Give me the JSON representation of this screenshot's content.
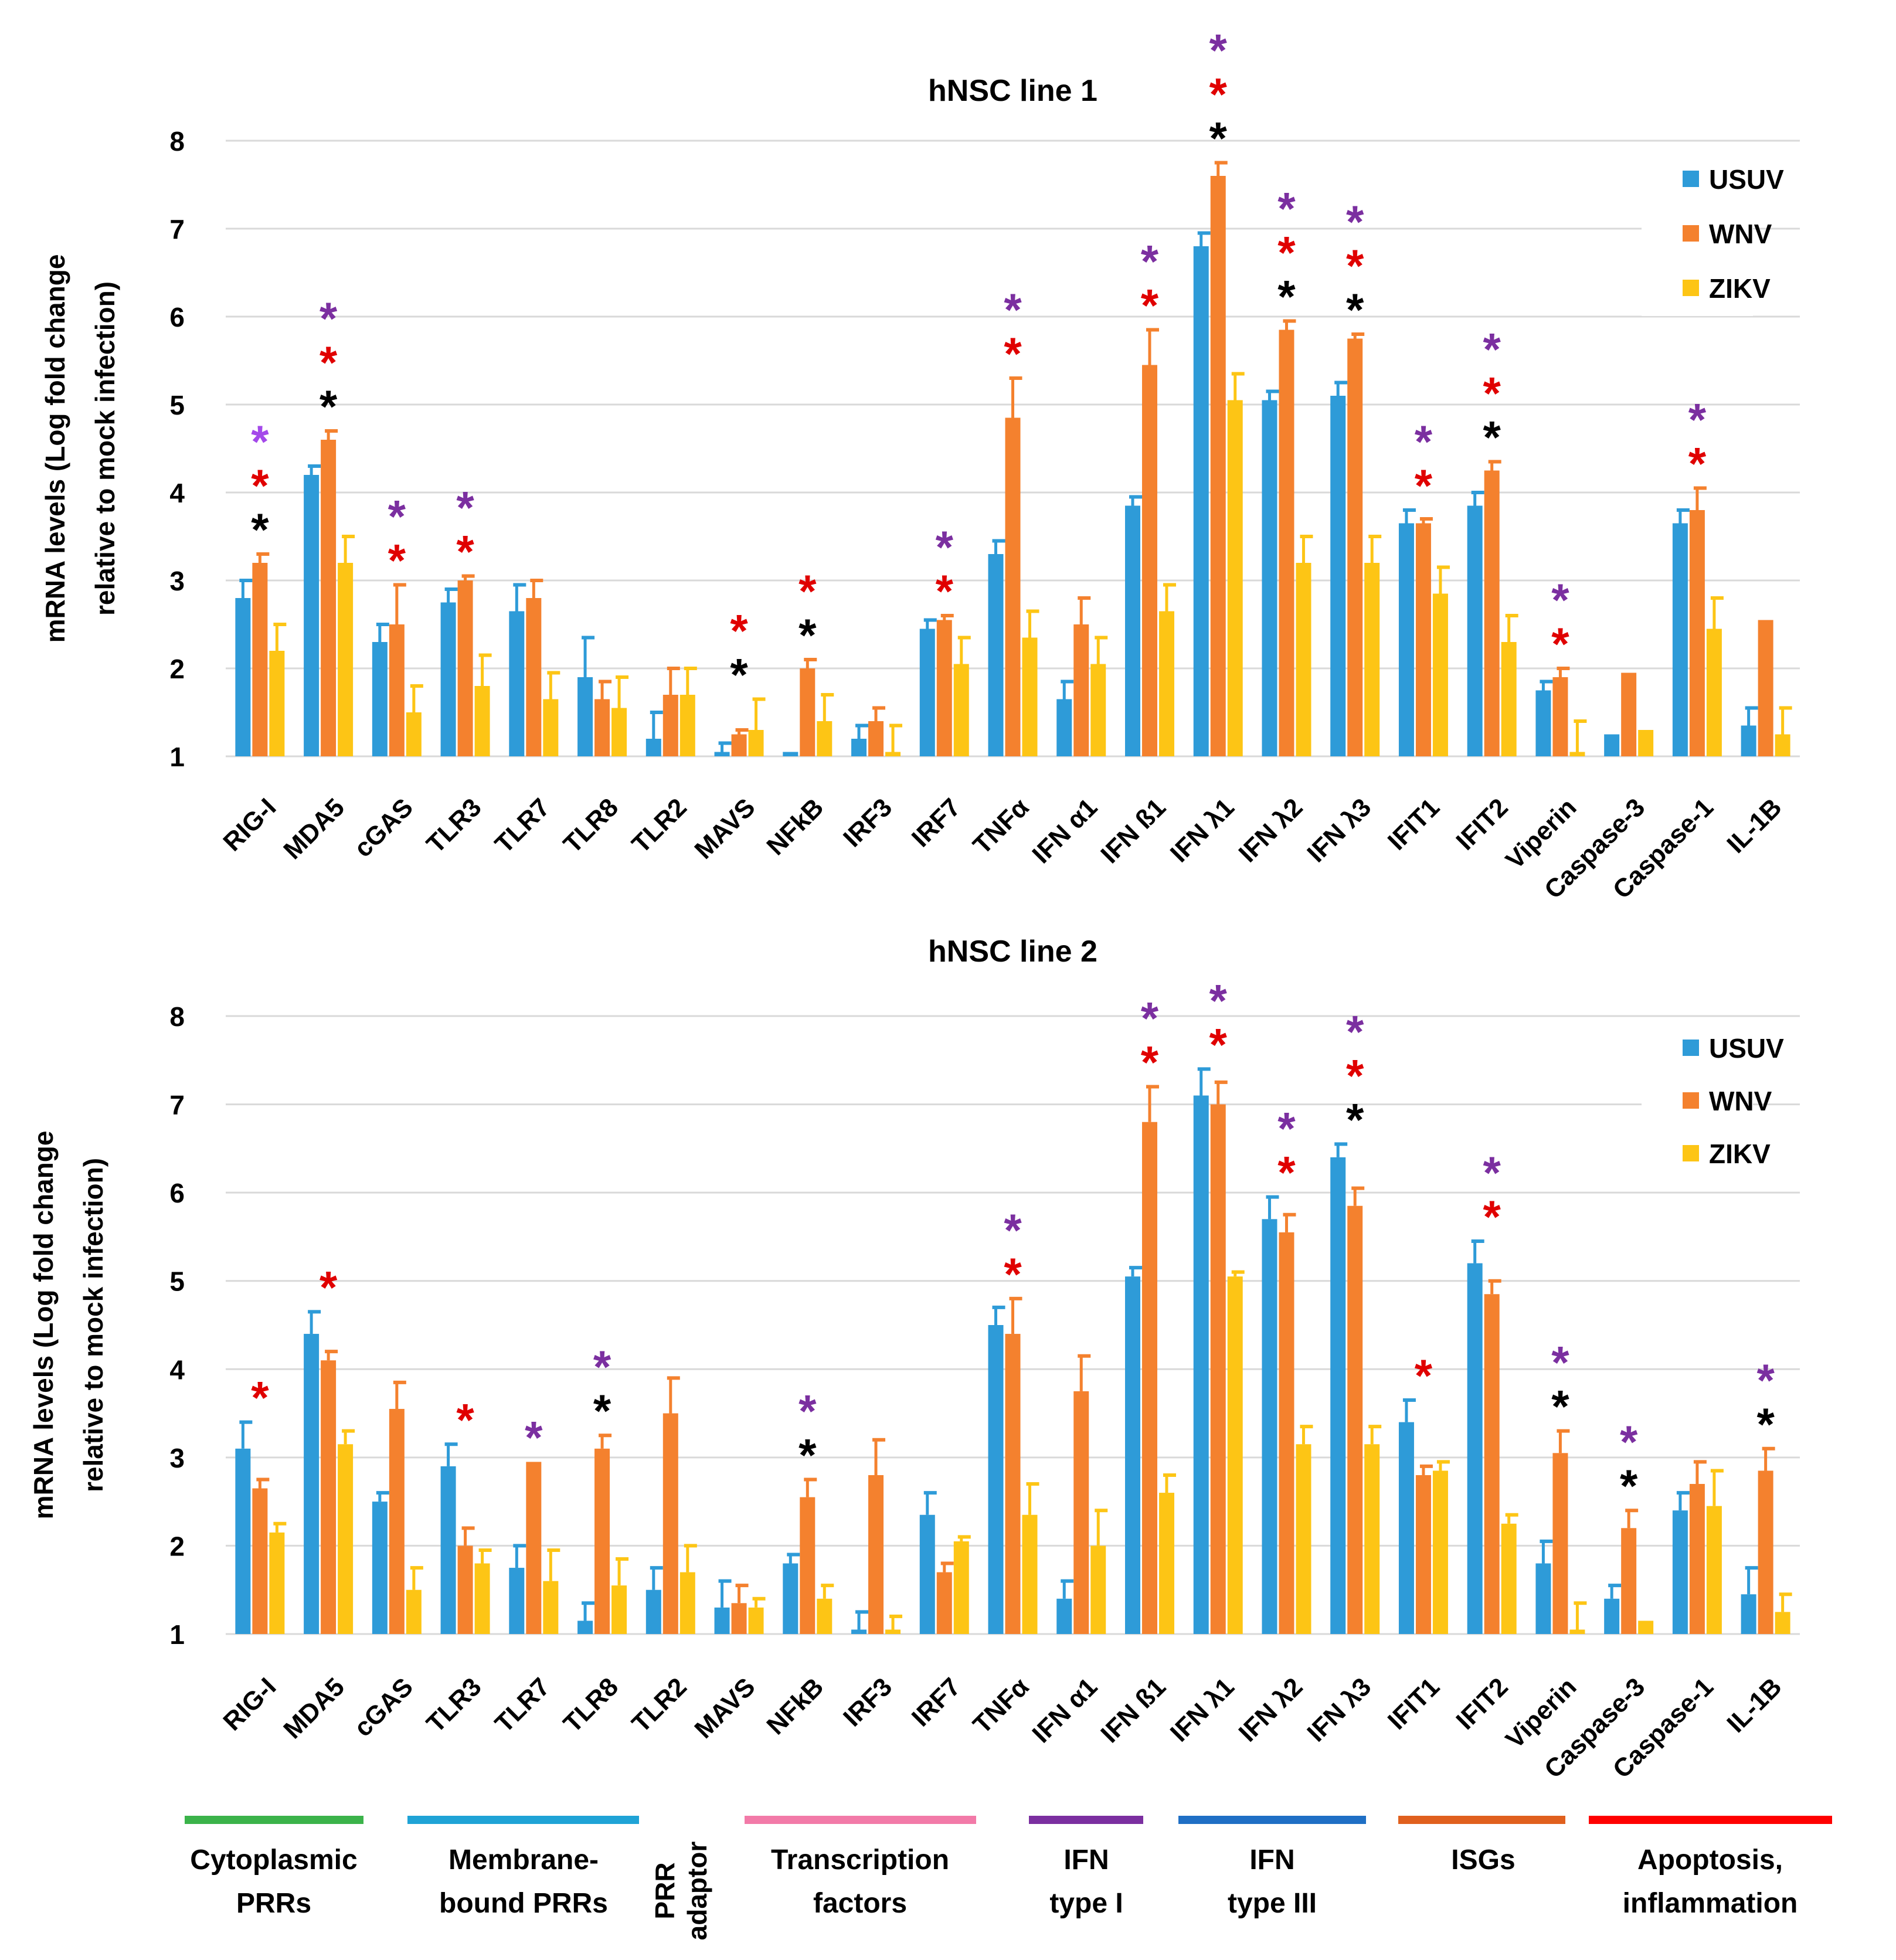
{
  "colors": {
    "USUV": "#2e9bd8",
    "WNV": "#f4812e",
    "ZIKV": "#fdc515",
    "grid": "#d9d9d9",
    "star_purple": "#7b2fa0",
    "star_light_purple": "#a449ea",
    "star_red": "#e00000",
    "star_black": "#000000"
  },
  "categories_legend": [
    {
      "label_lines": [
        "Cytoplasmic",
        "PRRs"
      ],
      "color": "#3bb34a"
    },
    {
      "label_lines": [
        "Membrane-",
        "bound PRRs"
      ],
      "color": "#1fa3d6"
    },
    {
      "label_lines": [
        "PRR",
        "adaptor"
      ],
      "color": null,
      "vertical": true
    },
    {
      "label_lines": [
        "Transcription",
        "factors"
      ],
      "color": "#f27aa8"
    },
    {
      "label_lines": [
        "IFN",
        "type I"
      ],
      "color": "#7b2fa0"
    },
    {
      "label_lines": [
        "IFN",
        "type III"
      ],
      "color": "#1f6fc5"
    },
    {
      "label_lines": [
        "ISGs"
      ],
      "color": "#e0601e"
    },
    {
      "label_lines": [
        "Apoptosis,",
        "inflammation"
      ],
      "color": "#ff0000"
    }
  ],
  "chart_data": [
    {
      "type": "bar",
      "title": "hNSC line 1",
      "ylabel": "mRNA levels (Log fold change relative to mock infection)",
      "ylabel_lines": [
        "mRNA levels (Log fold change",
        "relative to mock infection)"
      ],
      "ylim": [
        1,
        8
      ],
      "yticks": [
        1,
        2,
        3,
        4,
        5,
        6,
        7,
        8
      ],
      "grid": true,
      "legend": "top-right",
      "categories": [
        "RIG-I",
        "MDA5",
        "cGAS",
        "TLR3",
        "TLR7",
        "TLR8",
        "TLR2",
        "MAVS",
        "NFkB",
        "IRF3",
        "IRF7",
        "TNFα",
        "IFN α1",
        "IFN ß1",
        "IFN λ1",
        "IFN λ2",
        "IFN λ3",
        "IFIT1",
        "IFIT2",
        "Viperin",
        "Caspase-3",
        "Caspase-1",
        "IL-1B"
      ],
      "series": [
        {
          "name": "USUV",
          "values": [
            2.8,
            4.2,
            2.3,
            2.75,
            2.65,
            1.9,
            1.2,
            1.05,
            1.05,
            1.2,
            2.45,
            3.3,
            1.65,
            3.85,
            6.8,
            5.05,
            5.1,
            3.65,
            3.85,
            1.75,
            1.25,
            3.65,
            1.35
          ],
          "errors": [
            0.2,
            0.1,
            0.2,
            0.15,
            0.3,
            0.45,
            0.3,
            0.1,
            0.0,
            0.15,
            0.1,
            0.15,
            0.2,
            0.1,
            0.15,
            0.1,
            0.15,
            0.15,
            0.15,
            0.1,
            0.0,
            0.15,
            0.2
          ]
        },
        {
          "name": "WNV",
          "values": [
            3.2,
            4.6,
            2.5,
            3.0,
            2.8,
            1.65,
            1.7,
            1.25,
            2.0,
            1.4,
            2.55,
            4.85,
            2.5,
            5.45,
            7.6,
            5.85,
            5.75,
            3.65,
            4.25,
            1.9,
            1.95,
            3.8,
            2.55
          ],
          "errors": [
            0.1,
            0.1,
            0.45,
            0.05,
            0.2,
            0.2,
            0.3,
            0.05,
            0.1,
            0.15,
            0.05,
            0.45,
            0.3,
            0.4,
            0.15,
            0.1,
            0.05,
            0.05,
            0.1,
            0.1,
            0.0,
            0.25,
            0.0
          ]
        },
        {
          "name": "ZIKV",
          "values": [
            2.2,
            3.2,
            1.5,
            1.8,
            1.65,
            1.55,
            1.7,
            1.3,
            1.4,
            1.05,
            2.05,
            2.35,
            2.05,
            2.65,
            5.05,
            3.2,
            3.2,
            2.85,
            2.3,
            1.05,
            1.3,
            2.45,
            1.25
          ],
          "errors": [
            0.3,
            0.3,
            0.3,
            0.35,
            0.3,
            0.35,
            0.3,
            0.35,
            0.3,
            0.3,
            0.3,
            0.3,
            0.3,
            0.3,
            0.3,
            0.3,
            0.3,
            0.3,
            0.3,
            0.35,
            0.0,
            0.35,
            0.3
          ]
        }
      ],
      "significance": [
        {
          "category": "RIG-I",
          "stars": [
            "light_purple",
            "red",
            "black"
          ]
        },
        {
          "category": "MDA5",
          "stars": [
            "purple",
            "red",
            "black"
          ]
        },
        {
          "category": "cGAS",
          "stars": [
            "purple",
            "red"
          ]
        },
        {
          "category": "TLR3",
          "stars": [
            "purple",
            "red"
          ]
        },
        {
          "category": "MAVS",
          "stars": [
            "red",
            "black"
          ]
        },
        {
          "category": "NFkB",
          "stars": [
            "red",
            "black"
          ]
        },
        {
          "category": "IRF7",
          "stars": [
            "purple",
            "red"
          ]
        },
        {
          "category": "TNFα",
          "stars": [
            "purple",
            "red"
          ]
        },
        {
          "category": "IFN ß1",
          "stars": [
            "purple",
            "red"
          ]
        },
        {
          "category": "IFN λ1",
          "stars": [
            "purple",
            "red",
            "black"
          ]
        },
        {
          "category": "IFN λ2",
          "stars": [
            "purple",
            "red",
            "black"
          ]
        },
        {
          "category": "IFN λ3",
          "stars": [
            "purple",
            "red",
            "black"
          ]
        },
        {
          "category": "IFIT1",
          "stars": [
            "purple",
            "red"
          ]
        },
        {
          "category": "IFIT2",
          "stars": [
            "purple",
            "red",
            "black"
          ]
        },
        {
          "category": "Viperin",
          "stars": [
            "purple",
            "red"
          ]
        },
        {
          "category": "Caspase-1",
          "stars": [
            "purple",
            "red"
          ]
        }
      ]
    },
    {
      "type": "bar",
      "title": "hNSC line 2",
      "ylabel": "mRNA levels (Log fold change relative to mock infection)",
      "ylabel_lines": [
        "mRNA levels (Log fold change",
        "relative to mock infection)"
      ],
      "ylim": [
        1,
        8
      ],
      "yticks": [
        1,
        2,
        3,
        4,
        5,
        6,
        7,
        8
      ],
      "grid": true,
      "legend": "top-right",
      "categories": [
        "RIG-I",
        "MDA5",
        "cGAS",
        "TLR3",
        "TLR7",
        "TLR8",
        "TLR2",
        "MAVS",
        "NFkB",
        "IRF3",
        "IRF7",
        "TNFα",
        "IFN α1",
        "IFN ß1",
        "IFN λ1",
        "IFN λ2",
        "IFN λ3",
        "IFIT1",
        "IFIT2",
        "Viperin",
        "Caspase-3",
        "Caspase-1",
        "IL-1B"
      ],
      "series": [
        {
          "name": "USUV",
          "values": [
            3.1,
            4.4,
            2.5,
            2.9,
            1.75,
            1.15,
            1.5,
            1.3,
            1.8,
            1.05,
            2.35,
            4.5,
            1.4,
            5.05,
            7.1,
            5.7,
            6.4,
            3.4,
            5.2,
            1.8,
            1.4,
            2.4,
            1.45
          ],
          "errors": [
            0.3,
            0.25,
            0.1,
            0.25,
            0.25,
            0.2,
            0.25,
            0.3,
            0.1,
            0.2,
            0.25,
            0.2,
            0.2,
            0.1,
            0.3,
            0.25,
            0.15,
            0.25,
            0.25,
            0.25,
            0.15,
            0.2,
            0.3
          ]
        },
        {
          "name": "WNV",
          "values": [
            2.65,
            4.1,
            3.55,
            2.0,
            2.95,
            3.1,
            3.5,
            1.35,
            2.55,
            2.8,
            1.7,
            4.4,
            3.75,
            6.8,
            7.0,
            5.55,
            5.85,
            2.8,
            4.85,
            3.05,
            2.2,
            2.7,
            2.85
          ],
          "errors": [
            0.1,
            0.1,
            0.3,
            0.2,
            0.0,
            0.15,
            0.4,
            0.2,
            0.2,
            0.4,
            0.1,
            0.4,
            0.4,
            0.4,
            0.25,
            0.2,
            0.2,
            0.1,
            0.15,
            0.25,
            0.2,
            0.25,
            0.25
          ]
        },
        {
          "name": "ZIKV",
          "values": [
            2.15,
            3.15,
            1.5,
            1.8,
            1.6,
            1.55,
            1.7,
            1.3,
            1.4,
            1.05,
            2.05,
            2.35,
            2.0,
            2.6,
            5.05,
            3.15,
            3.15,
            2.85,
            2.25,
            1.05,
            1.15,
            2.45,
            1.25
          ],
          "errors": [
            0.1,
            0.15,
            0.25,
            0.15,
            0.35,
            0.3,
            0.3,
            0.1,
            0.15,
            0.15,
            0.05,
            0.35,
            0.4,
            0.2,
            0.05,
            0.2,
            0.2,
            0.1,
            0.1,
            0.3,
            0.0,
            0.4,
            0.2
          ]
        }
      ],
      "significance": [
        {
          "category": "RIG-I",
          "stars": [
            "red"
          ]
        },
        {
          "category": "MDA5",
          "stars": [
            "red"
          ]
        },
        {
          "category": "TLR3",
          "stars": [
            "red"
          ]
        },
        {
          "category": "TLR7",
          "stars": [
            "purple"
          ]
        },
        {
          "category": "TLR8",
          "stars": [
            "purple",
            "black"
          ]
        },
        {
          "category": "NFkB",
          "stars": [
            "purple",
            "black"
          ]
        },
        {
          "category": "TNFα",
          "stars": [
            "purple",
            "red"
          ]
        },
        {
          "category": "IFN ß1",
          "stars": [
            "purple",
            "red"
          ]
        },
        {
          "category": "IFN λ1",
          "stars": [
            "purple",
            "red"
          ]
        },
        {
          "category": "IFN λ2",
          "stars": [
            "purple",
            "red"
          ]
        },
        {
          "category": "IFN λ3",
          "stars": [
            "purple",
            "red",
            "black"
          ]
        },
        {
          "category": "IFIT1",
          "stars": [
            "red"
          ]
        },
        {
          "category": "IFIT2",
          "stars": [
            "purple",
            "red"
          ]
        },
        {
          "category": "Viperin",
          "stars": [
            "purple",
            "black"
          ]
        },
        {
          "category": "Caspase-3",
          "stars": [
            "purple",
            "black"
          ]
        },
        {
          "category": "IL-1B",
          "stars": [
            "purple",
            "black"
          ]
        }
      ]
    }
  ]
}
